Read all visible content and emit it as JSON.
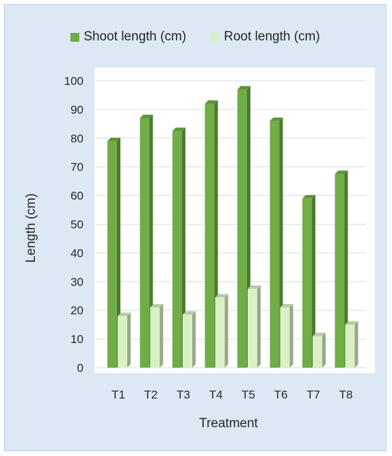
{
  "chart_data": {
    "type": "bar",
    "title": "",
    "xlabel": "Treatment",
    "ylabel": "Length (cm)",
    "categories": [
      "T1",
      "T2",
      "T3",
      "T4",
      "T5",
      "T6",
      "T7",
      "T8"
    ],
    "series": [
      {
        "name": "Shoot length (cm)",
        "values": [
          79,
          87,
          82.5,
          92,
          97,
          86,
          59,
          67.5
        ],
        "color": "#70ad47"
      },
      {
        "name": "Root length (cm)",
        "values": [
          18,
          21,
          18.5,
          24.5,
          27.5,
          21,
          11,
          15
        ],
        "color": "#d9f0c4"
      }
    ],
    "ylim": [
      0,
      100
    ],
    "yticks": [
      "0",
      "10",
      "20",
      "30",
      "40",
      "50",
      "60",
      "70",
      "80",
      "90",
      "100"
    ],
    "grid": true,
    "legend_position": "top",
    "style": "3d-clustered-column",
    "colors": {
      "background": "#dce8f4",
      "plot": "#ffffff",
      "gridline": "#d9d9d9",
      "text": "#262626"
    }
  }
}
